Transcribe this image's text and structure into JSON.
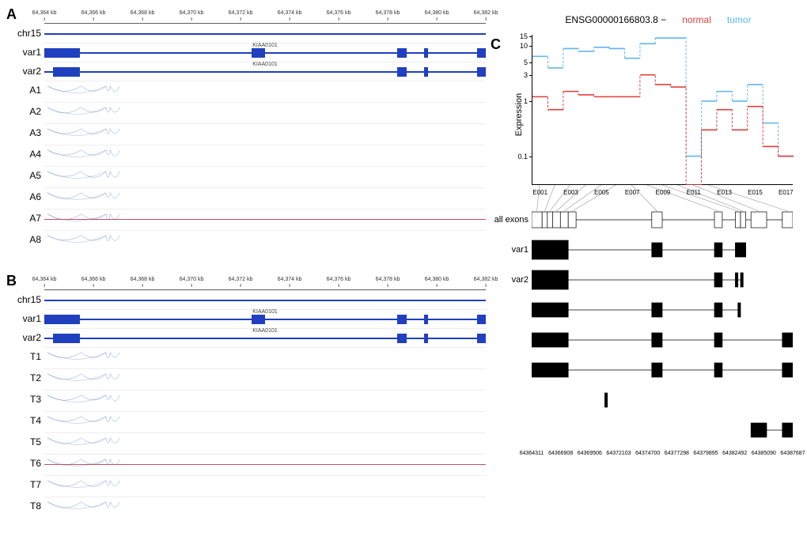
{
  "figure": {
    "panelA": {
      "label": "A",
      "chromosome": "chr15",
      "ruler_ticks": [
        "64,364 kb",
        "64,366 kb",
        "64,368 kb",
        "64,370 kb",
        "64,372 kb",
        "64,374 kb",
        "64,376 kb",
        "64,378 kb",
        "64,380 kb",
        "64,382 kb"
      ],
      "gene_label": "KIAA0101",
      "variants": [
        "var1",
        "var2"
      ],
      "samples": [
        "A1",
        "A2",
        "A3",
        "A4",
        "A5",
        "A6",
        "A7",
        "A8"
      ],
      "exon_positions_var1": [
        [
          0,
          8
        ],
        [
          47,
          50
        ],
        [
          80,
          82
        ],
        [
          86,
          87
        ],
        [
          98,
          100
        ]
      ],
      "exon_positions_var2": [
        [
          2,
          8
        ],
        [
          80,
          82
        ],
        [
          86,
          87
        ],
        [
          98,
          100
        ]
      ],
      "arc_color": "#6080d0",
      "sep_sample": "A7"
    },
    "panelB": {
      "label": "B",
      "chromosome": "chr15",
      "ruler_ticks": [
        "64,364 kb",
        "64,366 kb",
        "64,368 kb",
        "64,370 kb",
        "64,372 kb",
        "64,374 kb",
        "64,376 kb",
        "64,378 kb",
        "64,380 kb",
        "64,382 kb"
      ],
      "gene_label": "KIAA0101",
      "variants": [
        "var1",
        "var2"
      ],
      "samples": [
        "T1",
        "T2",
        "T3",
        "T4",
        "T5",
        "T6",
        "T7",
        "T8"
      ],
      "exon_positions_var1": [
        [
          0,
          8
        ],
        [
          47,
          50
        ],
        [
          80,
          82
        ],
        [
          86,
          87
        ],
        [
          98,
          100
        ]
      ],
      "exon_positions_var2": [
        [
          2,
          8
        ],
        [
          80,
          82
        ],
        [
          86,
          87
        ],
        [
          98,
          100
        ]
      ],
      "arc_color": "#6080d0",
      "sep_sample": "T6"
    },
    "panelC": {
      "label": "C",
      "gene_id": "ENSG00000166803.8 −",
      "legend_normal": "normal",
      "legend_tumor": "tumor",
      "normal_color": "#e04040",
      "tumor_color": "#60b8e8",
      "ylabel": "Expression",
      "yticks": [
        0.1,
        1,
        3,
        5,
        10,
        15
      ],
      "xticks": [
        "E001",
        "E003",
        "E005",
        "E007",
        "E009",
        "E011",
        "E013",
        "E015",
        "E017"
      ],
      "n_exons": 17,
      "tumor_values": [
        6.5,
        4,
        9,
        8,
        9.5,
        9,
        6,
        11,
        14,
        14,
        0.1,
        1,
        1.5,
        1,
        2,
        0.4,
        0.1
      ],
      "normal_values": [
        1.2,
        0.7,
        1.5,
        1.3,
        1.2,
        1.2,
        1.2,
        3,
        2,
        1.8,
        0.03,
        0.3,
        0.7,
        0.3,
        0.8,
        0.15,
        0.1
      ],
      "transcript_labels": [
        "all exons",
        "var1",
        "var2",
        "",
        "",
        "",
        "",
        ""
      ],
      "transcript_exons": [
        {
          "fill": "white",
          "exons": [
            [
              0,
              4
            ],
            [
              4,
              6
            ],
            [
              6,
              8
            ],
            [
              8,
              11
            ],
            [
              11,
              14
            ],
            [
              14,
              17
            ],
            [
              46,
              50
            ],
            [
              70,
              73
            ],
            [
              78,
              80
            ],
            [
              80,
              82
            ],
            [
              84,
              90
            ],
            [
              96,
              100
            ]
          ]
        },
        {
          "fill": "black",
          "exons": [
            [
              0,
              14
            ],
            [
              46,
              50
            ],
            [
              70,
              73
            ],
            [
              78,
              80
            ],
            [
              80,
              82
            ]
          ]
        },
        {
          "fill": "black",
          "exons": [
            [
              0,
              14
            ],
            [
              70,
              73
            ],
            [
              78,
              79
            ],
            [
              80,
              81
            ]
          ]
        },
        {
          "fill": "black",
          "exons": [
            [
              0,
              14
            ],
            [
              46,
              50
            ],
            [
              70,
              73
            ],
            [
              79,
              80
            ]
          ]
        },
        {
          "fill": "black",
          "exons": [
            [
              0,
              14
            ],
            [
              46,
              50
            ],
            [
              70,
              73
            ],
            [
              96,
              100
            ]
          ]
        },
        {
          "fill": "black",
          "exons": [
            [
              0,
              14
            ],
            [
              46,
              50
            ],
            [
              70,
              73
            ],
            [
              96,
              100
            ]
          ]
        },
        {
          "fill": "black",
          "exons": [
            [
              28,
              29
            ]
          ]
        },
        {
          "fill": "black",
          "exons": [
            [
              84,
              90
            ],
            [
              96,
              100
            ]
          ]
        }
      ],
      "coord_ticks": [
        "64364311",
        "64366908",
        "64369506",
        "64372103",
        "64374700",
        "64377298",
        "64379895",
        "64382492",
        "64385090",
        "64387687"
      ]
    }
  }
}
